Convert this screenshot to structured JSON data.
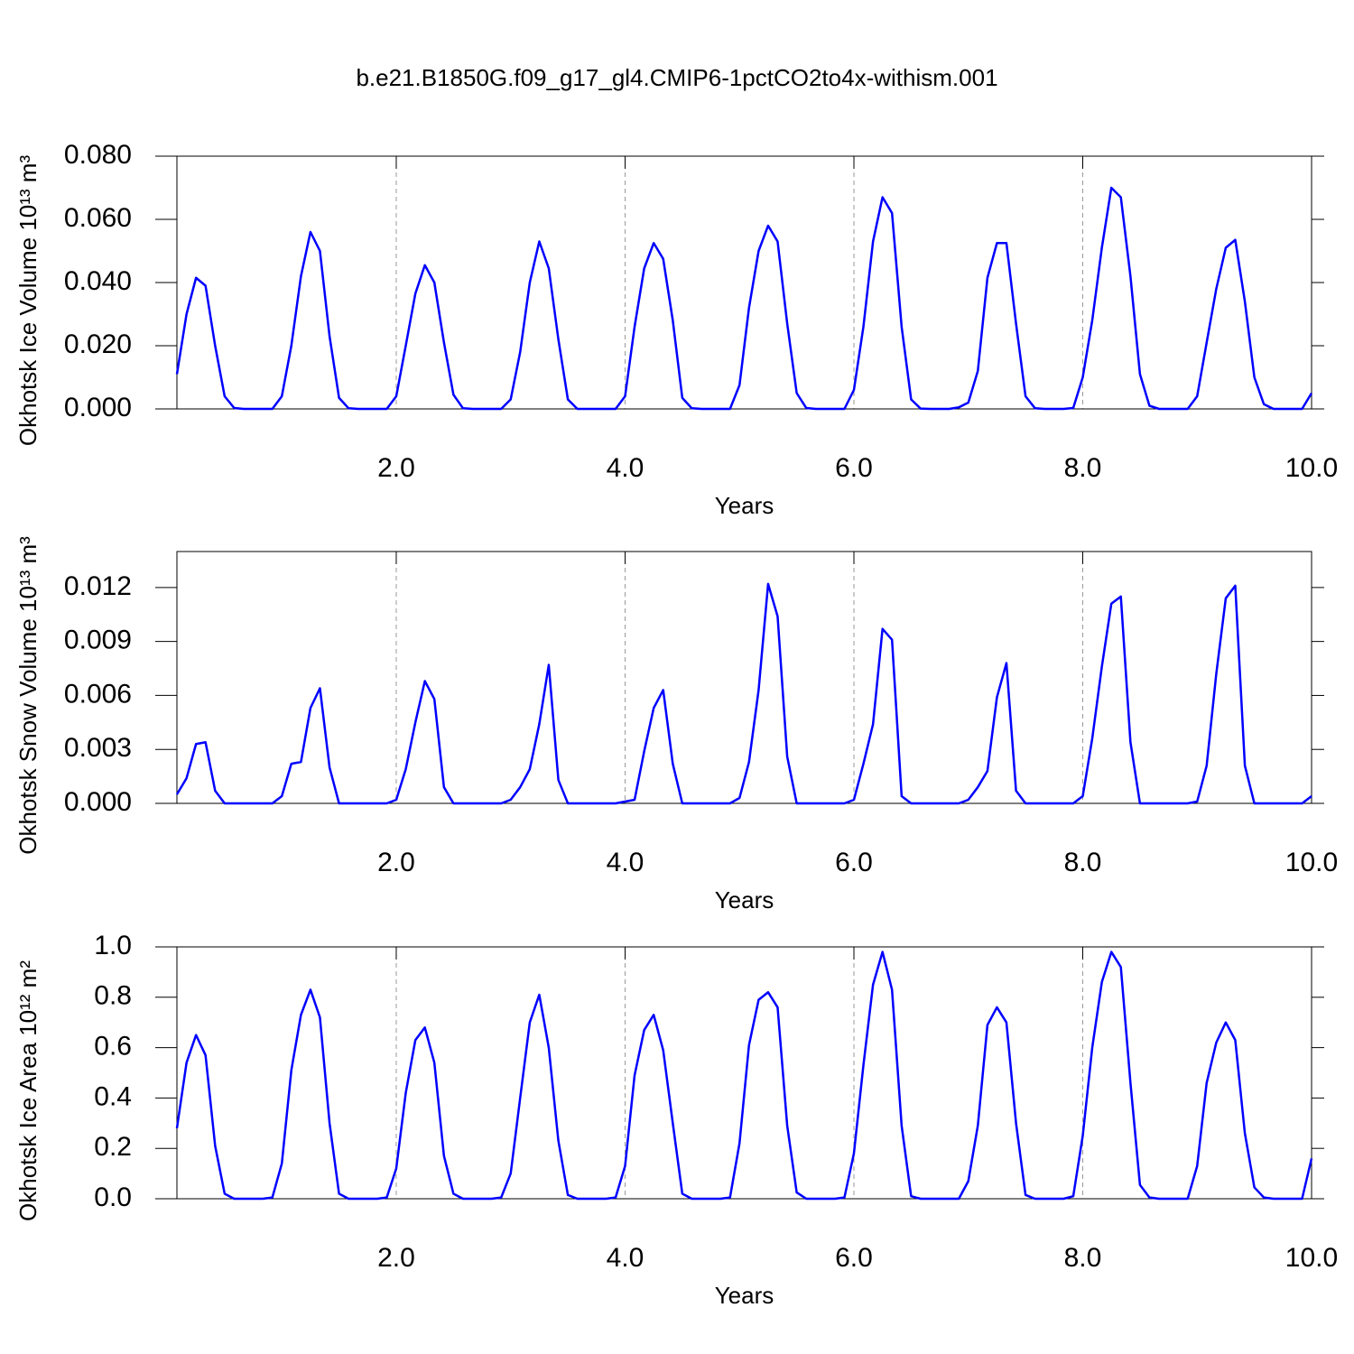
{
  "title": "b.e21.B1850G.f09_g17_gl4.CMIP6-1pctCO2to4x-withism.001",
  "chart_data": [
    {
      "type": "line",
      "ylabel": "Okhotsk Ice Volume 10¹³ m³",
      "xlabel": "Years",
      "xlim": [
        0.083,
        10
      ],
      "ylim": [
        0,
        0.08
      ],
      "grid": true,
      "xticks": [
        {
          "value": 2,
          "label": "2.0"
        },
        {
          "value": 4,
          "label": "4.0"
        },
        {
          "value": 6,
          "label": "6.0"
        },
        {
          "value": 8,
          "label": "8.0"
        },
        {
          "value": 10,
          "label": "10.0"
        }
      ],
      "yticks": [
        {
          "value": 0,
          "label": "0.000"
        },
        {
          "value": 0.02,
          "label": "0.020"
        },
        {
          "value": 0.04,
          "label": "0.040"
        },
        {
          "value": 0.06,
          "label": "0.060"
        },
        {
          "value": 0.08,
          "label": "0.080"
        }
      ],
      "x": [
        0.083,
        0.167,
        0.25,
        0.333,
        0.417,
        0.5,
        0.583,
        0.667,
        0.75,
        0.833,
        0.917,
        1,
        1.083,
        1.167,
        1.25,
        1.333,
        1.417,
        1.5,
        1.583,
        1.667,
        1.75,
        1.833,
        1.917,
        2,
        2.083,
        2.167,
        2.25,
        2.333,
        2.417,
        2.5,
        2.583,
        2.667,
        2.75,
        2.833,
        2.917,
        3,
        3.083,
        3.167,
        3.25,
        3.333,
        3.417,
        3.5,
        3.583,
        3.667,
        3.75,
        3.833,
        3.917,
        4,
        4.083,
        4.167,
        4.25,
        4.333,
        4.417,
        4.5,
        4.583,
        4.667,
        4.75,
        4.833,
        4.917,
        5,
        5.083,
        5.167,
        5.25,
        5.333,
        5.417,
        5.5,
        5.583,
        5.667,
        5.75,
        5.833,
        5.917,
        6,
        6.083,
        6.167,
        6.25,
        6.333,
        6.417,
        6.5,
        6.583,
        6.667,
        6.75,
        6.833,
        6.917,
        7,
        7.083,
        7.167,
        7.25,
        7.333,
        7.417,
        7.5,
        7.583,
        7.667,
        7.75,
        7.833,
        7.917,
        8,
        8.083,
        8.167,
        8.25,
        8.333,
        8.417,
        8.5,
        8.583,
        8.667,
        8.75,
        8.833,
        8.917,
        9,
        9.083,
        9.167,
        9.25,
        9.333,
        9.417,
        9.5,
        9.583,
        9.667,
        9.75,
        9.833,
        9.917,
        10
      ],
      "series": [
        {
          "color": "#0000ff",
          "values": [
            0.011,
            0.03,
            0.0415,
            0.039,
            0.02,
            0.004,
            0.0003,
            0,
            0,
            0,
            0,
            0.004,
            0.02,
            0.042,
            0.056,
            0.05,
            0.023,
            0.0035,
            0.0002,
            0,
            0,
            0,
            0,
            0.004,
            0.02,
            0.0365,
            0.0455,
            0.04,
            0.021,
            0.0045,
            0.0002,
            0,
            0,
            0,
            0,
            0.003,
            0.018,
            0.04,
            0.053,
            0.0445,
            0.022,
            0.003,
            0,
            0,
            0,
            0,
            0,
            0.004,
            0.026,
            0.0445,
            0.0525,
            0.0475,
            0.028,
            0.0035,
            0.0002,
            0,
            0,
            0,
            0,
            0.0075,
            0.032,
            0.05,
            0.058,
            0.053,
            0.027,
            0.005,
            0.0003,
            0,
            0,
            0,
            0,
            0.006,
            0.026,
            0.053,
            0.067,
            0.062,
            0.026,
            0.003,
            0.0001,
            0,
            0,
            0,
            0.0005,
            0.002,
            0.012,
            0.0415,
            0.0525,
            0.0525,
            0.027,
            0.004,
            0.0002,
            0,
            0,
            0,
            0.0003,
            0.01,
            0.028,
            0.051,
            0.07,
            0.067,
            0.042,
            0.011,
            0.001,
            0,
            0,
            0,
            0,
            0.004,
            0.021,
            0.038,
            0.051,
            0.0535,
            0.034,
            0.01,
            0.0015,
            0,
            0,
            0,
            0,
            0.005
          ]
        }
      ]
    },
    {
      "type": "line",
      "ylabel": "Okhotsk Snow Volume 10¹³ m³",
      "xlabel": "Years",
      "xlim": [
        0.083,
        10
      ],
      "ylim": [
        0,
        0.014
      ],
      "grid": true,
      "xticks": [
        {
          "value": 2,
          "label": "2.0"
        },
        {
          "value": 4,
          "label": "4.0"
        },
        {
          "value": 6,
          "label": "6.0"
        },
        {
          "value": 8,
          "label": "8.0"
        },
        {
          "value": 10,
          "label": "10.0"
        }
      ],
      "yticks": [
        {
          "value": 0,
          "label": "0.000"
        },
        {
          "value": 0.003,
          "label": "0.003"
        },
        {
          "value": 0.006,
          "label": "0.006"
        },
        {
          "value": 0.009,
          "label": "0.009"
        },
        {
          "value": 0.012,
          "label": "0.012"
        }
      ],
      "x": [
        0.083,
        0.167,
        0.25,
        0.333,
        0.417,
        0.5,
        0.583,
        0.667,
        0.75,
        0.833,
        0.917,
        1,
        1.083,
        1.167,
        1.25,
        1.333,
        1.417,
        1.5,
        1.583,
        1.667,
        1.75,
        1.833,
        1.917,
        2,
        2.083,
        2.167,
        2.25,
        2.333,
        2.417,
        2.5,
        2.583,
        2.667,
        2.75,
        2.833,
        2.917,
        3,
        3.083,
        3.167,
        3.25,
        3.333,
        3.417,
        3.5,
        3.583,
        3.667,
        3.75,
        3.833,
        3.917,
        4,
        4.083,
        4.167,
        4.25,
        4.333,
        4.417,
        4.5,
        4.583,
        4.667,
        4.75,
        4.833,
        4.917,
        5,
        5.083,
        5.167,
        5.25,
        5.333,
        5.417,
        5.5,
        5.583,
        5.667,
        5.75,
        5.833,
        5.917,
        6,
        6.083,
        6.167,
        6.25,
        6.333,
        6.417,
        6.5,
        6.583,
        6.667,
        6.75,
        6.833,
        6.917,
        7,
        7.083,
        7.167,
        7.25,
        7.333,
        7.417,
        7.5,
        7.583,
        7.667,
        7.75,
        7.833,
        7.917,
        8,
        8.083,
        8.167,
        8.25,
        8.333,
        8.417,
        8.5,
        8.583,
        8.667,
        8.75,
        8.833,
        8.917,
        9,
        9.083,
        9.167,
        9.25,
        9.333,
        9.417,
        9.5,
        9.583,
        9.667,
        9.75,
        9.833,
        9.917,
        10
      ],
      "series": [
        {
          "color": "#0000ff",
          "values": [
            0.0005,
            0.0014,
            0.0033,
            0.0034,
            0.0007,
            0,
            0,
            0,
            0,
            0,
            0,
            0.0004,
            0.0022,
            0.0023,
            0.0053,
            0.0064,
            0.002,
            0,
            0,
            0,
            0,
            0,
            0,
            0.0002,
            0.0019,
            0.0045,
            0.0068,
            0.0058,
            0.0009,
            0,
            0,
            0,
            0,
            0,
            0,
            0.0002,
            0.0009,
            0.0019,
            0.0044,
            0.0077,
            0.0013,
            0,
            0,
            0,
            0,
            0,
            0,
            0.0001,
            0.0002,
            0.0029,
            0.0053,
            0.0063,
            0.0022,
            0,
            0,
            0,
            0,
            0,
            0,
            0.0003,
            0.0023,
            0.0063,
            0.0122,
            0.0104,
            0.0026,
            0,
            0,
            0,
            0,
            0,
            0,
            0.0002,
            0.0022,
            0.0044,
            0.0097,
            0.0091,
            0.0004,
            0,
            0,
            0,
            0,
            0,
            0,
            0.0002,
            0.0009,
            0.0018,
            0.0059,
            0.0078,
            0.0007,
            0,
            0,
            0,
            0,
            0,
            0,
            0.0004,
            0.0036,
            0.0076,
            0.0111,
            0.0115,
            0.0034,
            0,
            0,
            0,
            0,
            0,
            0,
            0.0001,
            0.0021,
            0.0072,
            0.0114,
            0.0121,
            0.0021,
            0,
            0,
            0,
            0,
            0,
            0,
            0.0004
          ]
        }
      ]
    },
    {
      "type": "line",
      "ylabel": "Okhotsk Ice Area 10¹² m²",
      "xlabel": "Years",
      "xlim": [
        0.083,
        10
      ],
      "ylim": [
        0,
        1
      ],
      "grid": true,
      "xticks": [
        {
          "value": 2,
          "label": "2.0"
        },
        {
          "value": 4,
          "label": "4.0"
        },
        {
          "value": 6,
          "label": "6.0"
        },
        {
          "value": 8,
          "label": "8.0"
        },
        {
          "value": 10,
          "label": "10.0"
        }
      ],
      "yticks": [
        {
          "value": 0,
          "label": "0.0"
        },
        {
          "value": 0.2,
          "label": "0.2"
        },
        {
          "value": 0.4,
          "label": "0.4"
        },
        {
          "value": 0.6,
          "label": "0.6"
        },
        {
          "value": 0.8,
          "label": "0.8"
        },
        {
          "value": 1,
          "label": "1.0"
        }
      ],
      "x": [
        0.083,
        0.167,
        0.25,
        0.333,
        0.417,
        0.5,
        0.583,
        0.667,
        0.75,
        0.833,
        0.917,
        1,
        1.083,
        1.167,
        1.25,
        1.333,
        1.417,
        1.5,
        1.583,
        1.667,
        1.75,
        1.833,
        1.917,
        2,
        2.083,
        2.167,
        2.25,
        2.333,
        2.417,
        2.5,
        2.583,
        2.667,
        2.75,
        2.833,
        2.917,
        3,
        3.083,
        3.167,
        3.25,
        3.333,
        3.417,
        3.5,
        3.583,
        3.667,
        3.75,
        3.833,
        3.917,
        4,
        4.083,
        4.167,
        4.25,
        4.333,
        4.417,
        4.5,
        4.583,
        4.667,
        4.75,
        4.833,
        4.917,
        5,
        5.083,
        5.167,
        5.25,
        5.333,
        5.417,
        5.5,
        5.583,
        5.667,
        5.75,
        5.833,
        5.917,
        6,
        6.083,
        6.167,
        6.25,
        6.333,
        6.417,
        6.5,
        6.583,
        6.667,
        6.75,
        6.833,
        6.917,
        7,
        7.083,
        7.167,
        7.25,
        7.333,
        7.417,
        7.5,
        7.583,
        7.667,
        7.75,
        7.833,
        7.917,
        8,
        8.083,
        8.167,
        8.25,
        8.333,
        8.417,
        8.5,
        8.583,
        8.667,
        8.75,
        8.833,
        8.917,
        9,
        9.083,
        9.167,
        9.25,
        9.333,
        9.417,
        9.5,
        9.583,
        9.667,
        9.75,
        9.833,
        9.917,
        10
      ],
      "series": [
        {
          "color": "#0000ff",
          "values": [
            0.28,
            0.54,
            0.65,
            0.57,
            0.21,
            0.02,
            0,
            0,
            0,
            0,
            0.005,
            0.14,
            0.51,
            0.73,
            0.83,
            0.72,
            0.3,
            0.02,
            0,
            0,
            0,
            0,
            0.005,
            0.12,
            0.42,
            0.63,
            0.68,
            0.54,
            0.17,
            0.02,
            0,
            0,
            0,
            0,
            0.005,
            0.1,
            0.4,
            0.7,
            0.81,
            0.6,
            0.23,
            0.015,
            0,
            0,
            0,
            0,
            0.005,
            0.13,
            0.49,
            0.67,
            0.73,
            0.59,
            0.3,
            0.02,
            0,
            0,
            0,
            0,
            0.005,
            0.22,
            0.61,
            0.79,
            0.82,
            0.76,
            0.29,
            0.025,
            0,
            0,
            0,
            0,
            0.005,
            0.18,
            0.53,
            0.85,
            0.98,
            0.83,
            0.29,
            0.01,
            0,
            0,
            0,
            0,
            0,
            0.07,
            0.29,
            0.69,
            0.76,
            0.7,
            0.3,
            0.015,
            0,
            0,
            0,
            0,
            0.01,
            0.25,
            0.6,
            0.86,
            0.98,
            0.92,
            0.46,
            0.055,
            0.005,
            0,
            0,
            0,
            0,
            0.13,
            0.46,
            0.62,
            0.7,
            0.63,
            0.26,
            0.045,
            0.005,
            0,
            0,
            0,
            0,
            0.16
          ]
        }
      ]
    }
  ]
}
